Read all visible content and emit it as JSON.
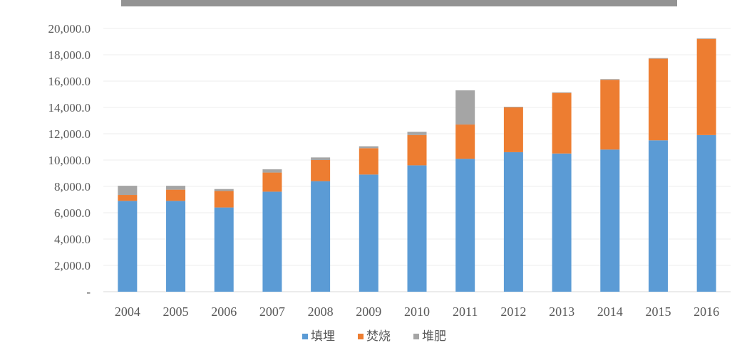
{
  "chart_data": {
    "type": "bar",
    "stacked": true,
    "title": "",
    "xlabel": "",
    "ylabel": "",
    "categories": [
      "2004",
      "2005",
      "2006",
      "2007",
      "2008",
      "2009",
      "2010",
      "2011",
      "2012",
      "2013",
      "2014",
      "2015",
      "2016"
    ],
    "series": [
      {
        "name": "填埋",
        "color": "#5b9bd5",
        "values": [
          6900,
          6900,
          6400,
          7600,
          8400,
          8900,
          9600,
          10100,
          10600,
          10500,
          10800,
          11500,
          11900
        ]
      },
      {
        "name": "焚烧",
        "color": "#ed7d31",
        "values": [
          450,
          850,
          1250,
          1450,
          1600,
          2000,
          2300,
          2600,
          3400,
          4600,
          5300,
          6200,
          7300
        ]
      },
      {
        "name": "堆肥",
        "color": "#a5a5a5",
        "values": [
          700,
          300,
          150,
          250,
          200,
          150,
          250,
          2600,
          50,
          50,
          50,
          50,
          50
        ]
      }
    ],
    "y_ticks": [
      "-",
      "2,000.0",
      "4,000.0",
      "6,000.0",
      "8,000.0",
      "10,000.0",
      "12,000.0",
      "14,000.0",
      "16,000.0",
      "18,000.0",
      "20,000.0"
    ],
    "ylim": [
      0,
      20000
    ],
    "grid": true,
    "legend_position": "bottom"
  }
}
